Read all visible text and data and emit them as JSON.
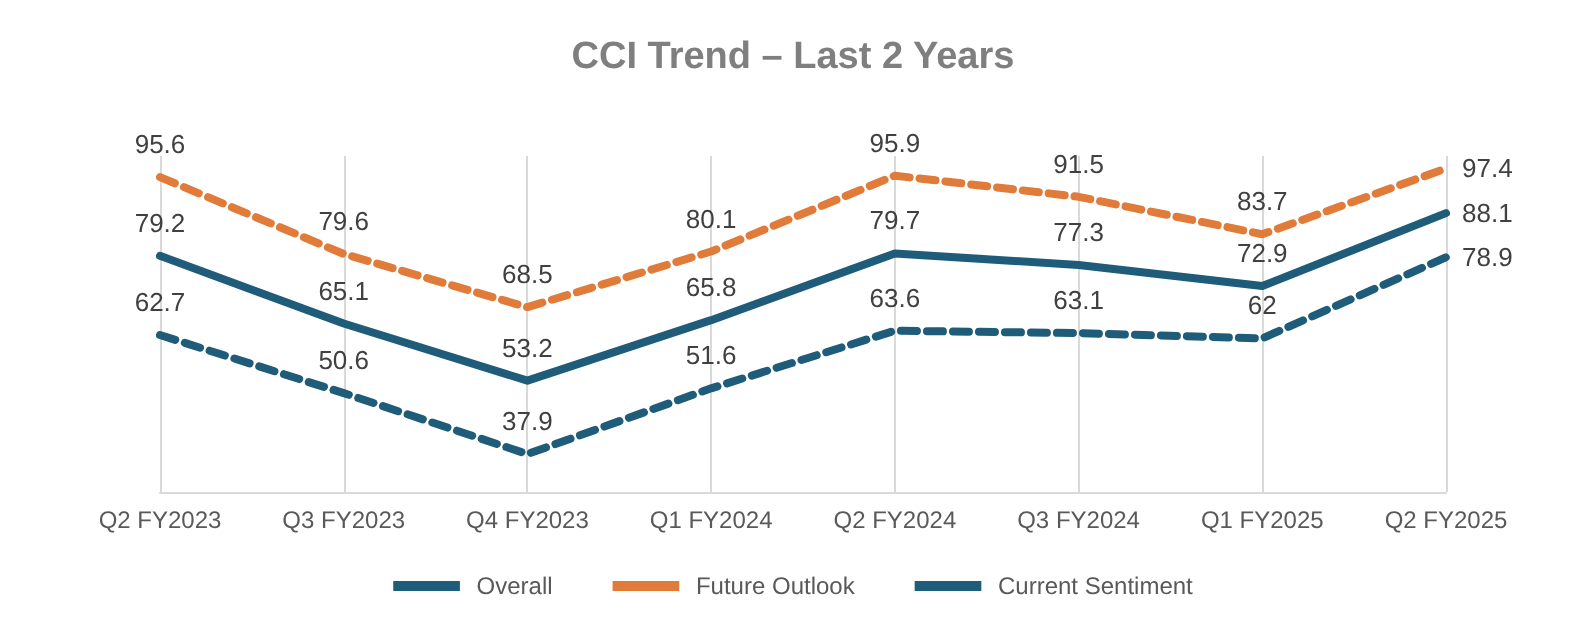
{
  "chart_data": {
    "type": "line",
    "title": "CCI Trend – Last 2 Years",
    "categories": [
      "Q2 FY2023",
      "Q3 FY2023",
      "Q4 FY2023",
      "Q1 FY2024",
      "Q2 FY2024",
      "Q3 FY2024",
      "Q1 FY2025",
      "Q2 FY2025"
    ],
    "series": [
      {
        "name": "Overall",
        "color": "#1f5c7a",
        "line_style": "solid",
        "values": [
          79.2,
          65.1,
          53.2,
          65.8,
          79.7,
          77.3,
          72.9,
          88.1
        ]
      },
      {
        "name": "Future Outlook",
        "color": "#e07b39",
        "line_style": "dashed",
        "values": [
          95.6,
          79.6,
          68.5,
          80.1,
          95.9,
          91.5,
          83.7,
          97.4
        ]
      },
      {
        "name": "Current Sentiment",
        "color": "#1f5c7a",
        "line_style": "dashed",
        "values": [
          62.7,
          50.6,
          37.9,
          51.6,
          63.6,
          63.1,
          62,
          78.9
        ]
      }
    ],
    "data_labels": true,
    "grid": "x",
    "legend": "bottom",
    "marker": "none",
    "tick_labels": "x"
  }
}
